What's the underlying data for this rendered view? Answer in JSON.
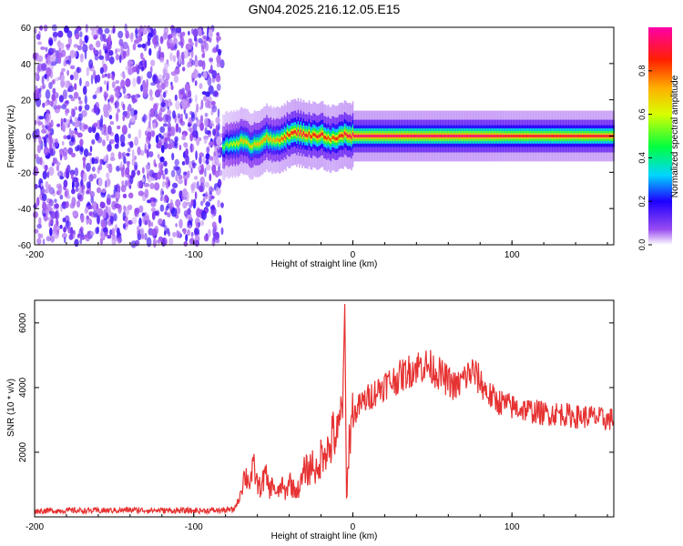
{
  "figure": {
    "title": "GN04.2025.216.12.05.E15"
  },
  "chart_data": [
    {
      "type": "heatmap",
      "title": "GN04.2025.216.12.05.E15",
      "xlabel": "Height of straight line (km)",
      "ylabel": "Frequency (Hz)",
      "xlim": [
        -200,
        164
      ],
      "ylim": [
        -60,
        60
      ],
      "x_ticks": [
        -200,
        -100,
        0,
        100
      ],
      "x_tick_labels": [
        "-200",
        "-100",
        "0",
        "100"
      ],
      "y_ticks": [
        -60,
        -40,
        -20,
        0,
        20,
        40,
        60
      ],
      "y_tick_labels": [
        "-60",
        "-40",
        "-20",
        "0",
        "20",
        "40",
        "60"
      ],
      "colorbar": {
        "label": "Normalized spectral amplitude",
        "range": [
          0,
          1
        ],
        "ticks": [
          0.0,
          0.2,
          0.4,
          0.6,
          0.8
        ],
        "tick_labels": [
          "0.0",
          "0.2",
          "0.4",
          "0.6",
          "0.8"
        ],
        "colormap": [
          "#ffffff",
          "#8a2be2",
          "#0000ff",
          "#00e5ff",
          "#00ff00",
          "#ffff00",
          "#ff8000",
          "#ff0000",
          "#ff00ff"
        ]
      },
      "noise_region": {
        "x_range": [
          -200,
          -82
        ],
        "level": 0.2
      },
      "signal_trace": {
        "x": [
          -82,
          -75,
          -70,
          -65,
          -60,
          -55,
          -50,
          -45,
          -40,
          -35,
          -30,
          -25,
          -20,
          -15,
          -10,
          -5,
          0,
          20,
          50,
          80,
          100,
          130,
          164
        ],
        "frequency": [
          -6,
          -4,
          -3,
          -5,
          -4,
          -1,
          -3,
          -1,
          1,
          2,
          1,
          0,
          1,
          -2,
          -1,
          1,
          0,
          0,
          0,
          0,
          0,
          0,
          0
        ],
        "peak_amplitude": [
          0.5,
          0.6,
          0.7,
          0.65,
          0.7,
          0.75,
          0.7,
          0.8,
          0.85,
          0.9,
          0.9,
          0.85,
          0.9,
          0.8,
          0.85,
          0.9,
          0.95,
          0.95,
          0.95,
          0.95,
          0.9,
          0.9,
          0.9
        ]
      },
      "grid": false,
      "legend": "none"
    },
    {
      "type": "line",
      "xlabel": "Height of straight line (km)",
      "ylabel": "SNR (10 * v/v)",
      "xlim": [
        -200,
        164
      ],
      "ylim": [
        0,
        6700
      ],
      "x_ticks": [
        -200,
        -100,
        0,
        100
      ],
      "x_tick_labels": [
        "-200",
        "-100",
        "0",
        "100"
      ],
      "y_ticks": [
        2000,
        4000,
        6000
      ],
      "y_tick_labels": [
        "2000",
        "4000",
        "6000"
      ],
      "color": "#e63232",
      "grid": false,
      "legend": "none",
      "series": [
        {
          "x": [
            -200,
            -180,
            -160,
            -140,
            -120,
            -100,
            -85,
            -75,
            -72,
            -70,
            -68,
            -65,
            -62,
            -60,
            -58,
            -55,
            -52,
            -50,
            -48,
            -45,
            -42,
            -40,
            -38,
            -35,
            -32,
            -30,
            -28,
            -25,
            -22,
            -20,
            -18,
            -15,
            -12,
            -10,
            -8,
            -6,
            -5,
            -4,
            -2,
            0,
            5,
            10,
            15,
            20,
            25,
            30,
            35,
            40,
            45,
            50,
            55,
            60,
            65,
            70,
            75,
            80,
            85,
            90,
            95,
            100,
            110,
            120,
            130,
            140,
            150,
            160,
            164
          ],
          "y": [
            180,
            200,
            190,
            210,
            200,
            190,
            200,
            220,
            500,
            900,
            1300,
            1100,
            1500,
            1000,
            900,
            1300,
            800,
            1100,
            600,
            1000,
            700,
            1200,
            900,
            800,
            1100,
            1500,
            1400,
            1700,
            1200,
            1900,
            2200,
            2000,
            2600,
            2400,
            2800,
            4400,
            6700,
            600,
            2600,
            3100,
            3500,
            3700,
            3900,
            4100,
            4200,
            4350,
            4500,
            4650,
            4700,
            4600,
            4400,
            4200,
            4000,
            4300,
            4500,
            4200,
            3800,
            3600,
            3500,
            3400,
            3300,
            3200,
            3200,
            3100,
            3100,
            3000,
            3050
          ]
        }
      ]
    }
  ]
}
